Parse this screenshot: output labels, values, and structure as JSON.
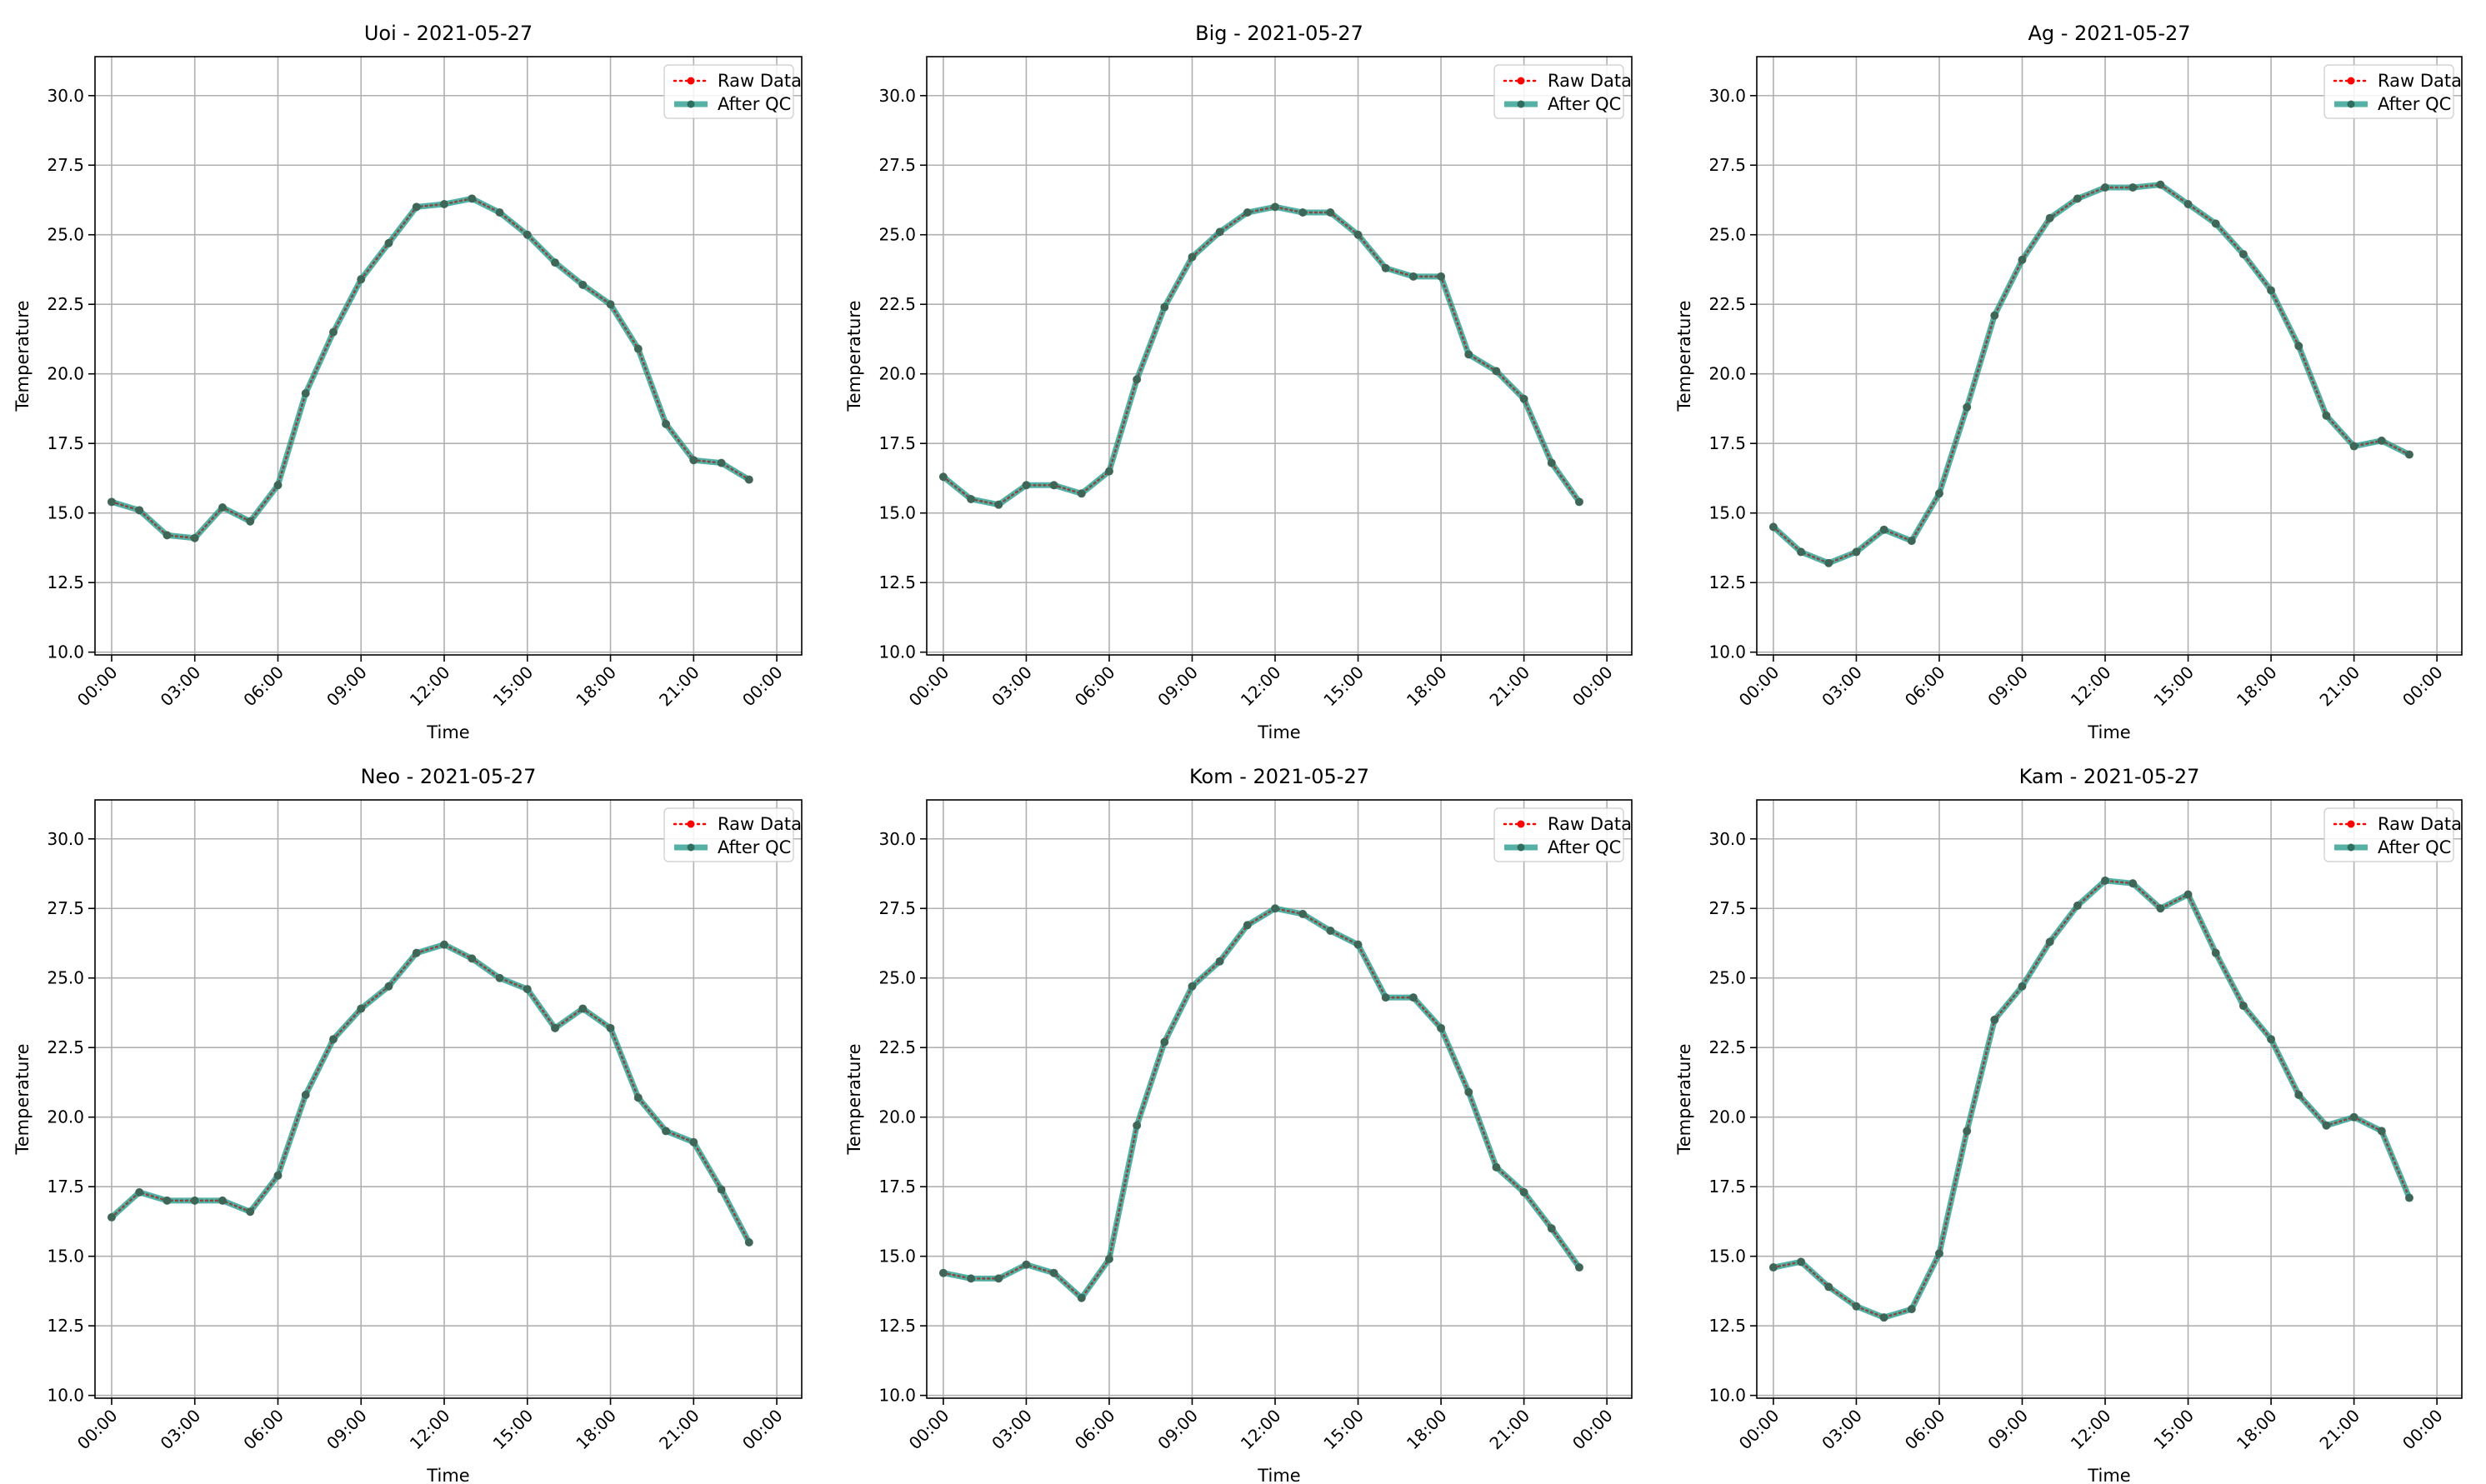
{
  "chart_data": [
    {
      "type": "line",
      "title": "Uoi - 2021-05-27",
      "xlabel": "Time",
      "ylabel": "Temperature",
      "x": [
        "00:00",
        "01:00",
        "02:00",
        "03:00",
        "04:00",
        "05:00",
        "06:00",
        "07:00",
        "08:00",
        "09:00",
        "10:00",
        "11:00",
        "12:00",
        "13:00",
        "14:00",
        "15:00",
        "16:00",
        "17:00",
        "18:00",
        "19:00",
        "20:00",
        "21:00",
        "22:00",
        "23:00"
      ],
      "xticks": [
        "00:00",
        "03:00",
        "06:00",
        "09:00",
        "12:00",
        "15:00",
        "18:00",
        "21:00",
        "00:00"
      ],
      "yticks": [
        "10.0",
        "12.5",
        "15.0",
        "17.5",
        "20.0",
        "22.5",
        "25.0",
        "27.5",
        "30.0"
      ],
      "ylim": [
        9.9,
        31.4
      ],
      "grid": true,
      "legend": "top-right",
      "series": [
        {
          "name": "Raw Data",
          "color": "#ff0000",
          "values": [
            15.4,
            15.1,
            14.2,
            14.1,
            15.2,
            14.7,
            16.0,
            19.3,
            21.5,
            23.4,
            24.7,
            26.0,
            26.1,
            26.3,
            25.8,
            25.0,
            24.0,
            23.2,
            22.5,
            20.9,
            18.2,
            16.9,
            16.8,
            16.2
          ]
        },
        {
          "name": "After QC",
          "color": "#2a9d8f",
          "values": [
            15.4,
            15.1,
            14.2,
            14.1,
            15.2,
            14.7,
            16.0,
            19.3,
            21.5,
            23.4,
            24.7,
            26.0,
            26.1,
            26.3,
            25.8,
            25.0,
            24.0,
            23.2,
            22.5,
            20.9,
            18.2,
            16.9,
            16.8,
            16.2
          ]
        }
      ]
    },
    {
      "type": "line",
      "title": "Big - 2021-05-27",
      "xlabel": "Time",
      "ylabel": "Temperature",
      "x": [
        "00:00",
        "01:00",
        "02:00",
        "03:00",
        "04:00",
        "05:00",
        "06:00",
        "07:00",
        "08:00",
        "09:00",
        "10:00",
        "11:00",
        "12:00",
        "13:00",
        "14:00",
        "15:00",
        "16:00",
        "17:00",
        "18:00",
        "19:00",
        "20:00",
        "21:00",
        "22:00",
        "23:00"
      ],
      "xticks": [
        "00:00",
        "03:00",
        "06:00",
        "09:00",
        "12:00",
        "15:00",
        "18:00",
        "21:00",
        "00:00"
      ],
      "yticks": [
        "10.0",
        "12.5",
        "15.0",
        "17.5",
        "20.0",
        "22.5",
        "25.0",
        "27.5",
        "30.0"
      ],
      "ylim": [
        9.9,
        31.4
      ],
      "grid": true,
      "legend": "top-right",
      "series": [
        {
          "name": "Raw Data",
          "color": "#ff0000",
          "values": [
            16.3,
            15.5,
            15.3,
            16.0,
            16.0,
            15.7,
            16.5,
            19.8,
            22.4,
            24.2,
            25.1,
            25.8,
            26.0,
            25.8,
            25.8,
            25.0,
            23.8,
            23.5,
            23.5,
            20.7,
            20.1,
            19.1,
            16.8,
            15.4
          ]
        },
        {
          "name": "After QC",
          "color": "#2a9d8f",
          "values": [
            16.3,
            15.5,
            15.3,
            16.0,
            16.0,
            15.7,
            16.5,
            19.8,
            22.4,
            24.2,
            25.1,
            25.8,
            26.0,
            25.8,
            25.8,
            25.0,
            23.8,
            23.5,
            23.5,
            20.7,
            20.1,
            19.1,
            16.8,
            15.4
          ]
        }
      ]
    },
    {
      "type": "line",
      "title": "Ag - 2021-05-27",
      "xlabel": "Time",
      "ylabel": "Temperature",
      "x": [
        "00:00",
        "01:00",
        "02:00",
        "03:00",
        "04:00",
        "05:00",
        "06:00",
        "07:00",
        "08:00",
        "09:00",
        "10:00",
        "11:00",
        "12:00",
        "13:00",
        "14:00",
        "15:00",
        "16:00",
        "17:00",
        "18:00",
        "19:00",
        "20:00",
        "21:00",
        "22:00",
        "23:00"
      ],
      "xticks": [
        "00:00",
        "03:00",
        "06:00",
        "09:00",
        "12:00",
        "15:00",
        "18:00",
        "21:00",
        "00:00"
      ],
      "yticks": [
        "10.0",
        "12.5",
        "15.0",
        "17.5",
        "20.0",
        "22.5",
        "25.0",
        "27.5",
        "30.0"
      ],
      "ylim": [
        9.9,
        31.4
      ],
      "grid": true,
      "legend": "top-right",
      "series": [
        {
          "name": "Raw Data",
          "color": "#ff0000",
          "values": [
            14.5,
            13.6,
            13.2,
            13.6,
            14.4,
            14.0,
            15.7,
            18.8,
            22.1,
            24.1,
            25.6,
            26.3,
            26.7,
            26.7,
            26.8,
            26.1,
            25.4,
            24.3,
            23.0,
            21.0,
            18.5,
            17.4,
            17.6,
            17.1
          ]
        },
        {
          "name": "After QC",
          "color": "#2a9d8f",
          "values": [
            14.5,
            13.6,
            13.2,
            13.6,
            14.4,
            14.0,
            15.7,
            18.8,
            22.1,
            24.1,
            25.6,
            26.3,
            26.7,
            26.7,
            26.8,
            26.1,
            25.4,
            24.3,
            23.0,
            21.0,
            18.5,
            17.4,
            17.6,
            17.1
          ]
        }
      ]
    },
    {
      "type": "line",
      "title": "Neo - 2021-05-27",
      "xlabel": "Time",
      "ylabel": "Temperature",
      "x": [
        "00:00",
        "01:00",
        "02:00",
        "03:00",
        "04:00",
        "05:00",
        "06:00",
        "07:00",
        "08:00",
        "09:00",
        "10:00",
        "11:00",
        "12:00",
        "13:00",
        "14:00",
        "15:00",
        "16:00",
        "17:00",
        "18:00",
        "19:00",
        "20:00",
        "21:00",
        "22:00",
        "23:00"
      ],
      "xticks": [
        "00:00",
        "03:00",
        "06:00",
        "09:00",
        "12:00",
        "15:00",
        "18:00",
        "21:00",
        "00:00"
      ],
      "yticks": [
        "10.0",
        "12.5",
        "15.0",
        "17.5",
        "20.0",
        "22.5",
        "25.0",
        "27.5",
        "30.0"
      ],
      "ylim": [
        9.9,
        31.4
      ],
      "grid": true,
      "legend": "top-right",
      "series": [
        {
          "name": "Raw Data",
          "color": "#ff0000",
          "values": [
            16.4,
            17.3,
            17.0,
            17.0,
            17.0,
            16.6,
            17.9,
            20.8,
            22.8,
            23.9,
            24.7,
            25.9,
            26.2,
            25.7,
            25.0,
            24.6,
            23.2,
            23.9,
            23.2,
            20.7,
            19.5,
            19.1,
            17.4,
            15.5
          ]
        },
        {
          "name": "After QC",
          "color": "#2a9d8f",
          "values": [
            16.4,
            17.3,
            17.0,
            17.0,
            17.0,
            16.6,
            17.9,
            20.8,
            22.8,
            23.9,
            24.7,
            25.9,
            26.2,
            25.7,
            25.0,
            24.6,
            23.2,
            23.9,
            23.2,
            20.7,
            19.5,
            19.1,
            17.4,
            15.5
          ]
        }
      ]
    },
    {
      "type": "line",
      "title": "Kom - 2021-05-27",
      "xlabel": "Time",
      "ylabel": "Temperature",
      "x": [
        "00:00",
        "01:00",
        "02:00",
        "03:00",
        "04:00",
        "05:00",
        "06:00",
        "07:00",
        "08:00",
        "09:00",
        "10:00",
        "11:00",
        "12:00",
        "13:00",
        "14:00",
        "15:00",
        "16:00",
        "17:00",
        "18:00",
        "19:00",
        "20:00",
        "21:00",
        "22:00",
        "23:00"
      ],
      "xticks": [
        "00:00",
        "03:00",
        "06:00",
        "09:00",
        "12:00",
        "15:00",
        "18:00",
        "21:00",
        "00:00"
      ],
      "yticks": [
        "10.0",
        "12.5",
        "15.0",
        "17.5",
        "20.0",
        "22.5",
        "25.0",
        "27.5",
        "30.0"
      ],
      "ylim": [
        9.9,
        31.4
      ],
      "grid": true,
      "legend": "top-right",
      "series": [
        {
          "name": "Raw Data",
          "color": "#ff0000",
          "values": [
            14.4,
            14.2,
            14.2,
            14.7,
            14.4,
            13.5,
            14.9,
            19.7,
            22.7,
            24.7,
            25.6,
            26.9,
            27.5,
            27.3,
            26.7,
            26.2,
            24.3,
            24.3,
            23.2,
            20.9,
            18.2,
            17.3,
            16.0,
            14.6
          ]
        },
        {
          "name": "After QC",
          "color": "#2a9d8f",
          "values": [
            14.4,
            14.2,
            14.2,
            14.7,
            14.4,
            13.5,
            14.9,
            19.7,
            22.7,
            24.7,
            25.6,
            26.9,
            27.5,
            27.3,
            26.7,
            26.2,
            24.3,
            24.3,
            23.2,
            20.9,
            18.2,
            17.3,
            16.0,
            14.6
          ]
        }
      ]
    },
    {
      "type": "line",
      "title": "Kam - 2021-05-27",
      "xlabel": "Time",
      "ylabel": "Temperature",
      "x": [
        "00:00",
        "01:00",
        "02:00",
        "03:00",
        "04:00",
        "05:00",
        "06:00",
        "07:00",
        "08:00",
        "09:00",
        "10:00",
        "11:00",
        "12:00",
        "13:00",
        "14:00",
        "15:00",
        "16:00",
        "17:00",
        "18:00",
        "19:00",
        "20:00",
        "21:00",
        "22:00",
        "23:00"
      ],
      "xticks": [
        "00:00",
        "03:00",
        "06:00",
        "09:00",
        "12:00",
        "15:00",
        "18:00",
        "21:00",
        "00:00"
      ],
      "yticks": [
        "10.0",
        "12.5",
        "15.0",
        "17.5",
        "20.0",
        "22.5",
        "25.0",
        "27.5",
        "30.0"
      ],
      "ylim": [
        9.9,
        31.4
      ],
      "grid": true,
      "legend": "top-right",
      "series": [
        {
          "name": "Raw Data",
          "color": "#ff0000",
          "values": [
            14.6,
            14.8,
            13.9,
            13.2,
            12.8,
            13.1,
            15.1,
            19.5,
            23.5,
            24.7,
            26.3,
            27.6,
            28.5,
            28.4,
            27.5,
            28.0,
            25.9,
            24.0,
            22.8,
            20.8,
            19.7,
            20.0,
            19.5,
            17.1
          ]
        },
        {
          "name": "After QC",
          "color": "#2a9d8f",
          "values": [
            14.6,
            14.8,
            13.9,
            13.2,
            12.8,
            13.1,
            15.1,
            19.5,
            23.5,
            24.7,
            26.3,
            27.6,
            28.5,
            28.4,
            27.5,
            28.0,
            25.9,
            24.0,
            22.8,
            20.8,
            19.7,
            20.0,
            19.5,
            17.1
          ]
        }
      ]
    }
  ]
}
